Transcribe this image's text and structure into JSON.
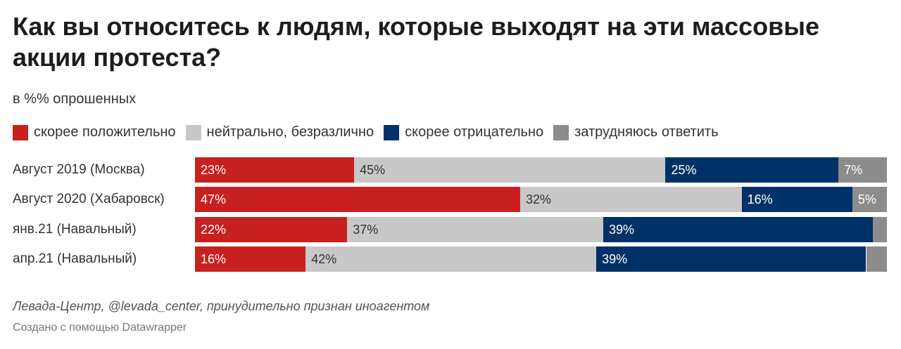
{
  "title": "Как вы относитесь к людям, которые выходят на эти массовые акции протеста?",
  "subtitle": "в %% опрошенных",
  "source": "Левада-Центр, @levada_center, принудительно признан иноагентом",
  "credit": "Создано с помощью Datawrapper",
  "colors": {
    "positive": "#c8201f",
    "neutral": "#c8c8c8",
    "negative": "#003166",
    "unsure": "#8c8c8c"
  },
  "chart_data": {
    "type": "bar",
    "stacked": true,
    "orientation": "horizontal",
    "title": "Как вы относитесь к людям, которые выходят на эти массовые акции протеста?",
    "subtitle": "в %% опрошенных",
    "legend_position": "top",
    "categories": [
      "Август 2019 (Москва)",
      "Август 2020 (Хабаровск)",
      "янв.21 (Навальный)",
      "апр.21 (Навальный)"
    ],
    "series": [
      {
        "name": "скорее положительно",
        "color": "#c8201f",
        "values": [
          23,
          47,
          22,
          16
        ],
        "labels": [
          "23%",
          "47%",
          "22%",
          "16%"
        ]
      },
      {
        "name": "нейтрально, безразлично",
        "color": "#c8c8c8",
        "values": [
          45,
          32,
          37,
          42
        ],
        "labels": [
          "45%",
          "32%",
          "37%",
          "42%"
        ]
      },
      {
        "name": "скорее отрицательно",
        "color": "#003166",
        "values": [
          25,
          16,
          39,
          39
        ],
        "labels": [
          "25%",
          "16%",
          "39%",
          "39%"
        ]
      },
      {
        "name": "затрудняюсь ответить",
        "color": "#8c8c8c",
        "values": [
          7,
          5,
          2,
          3
        ],
        "labels": [
          "7%",
          "5%",
          "",
          ""
        ]
      }
    ]
  }
}
